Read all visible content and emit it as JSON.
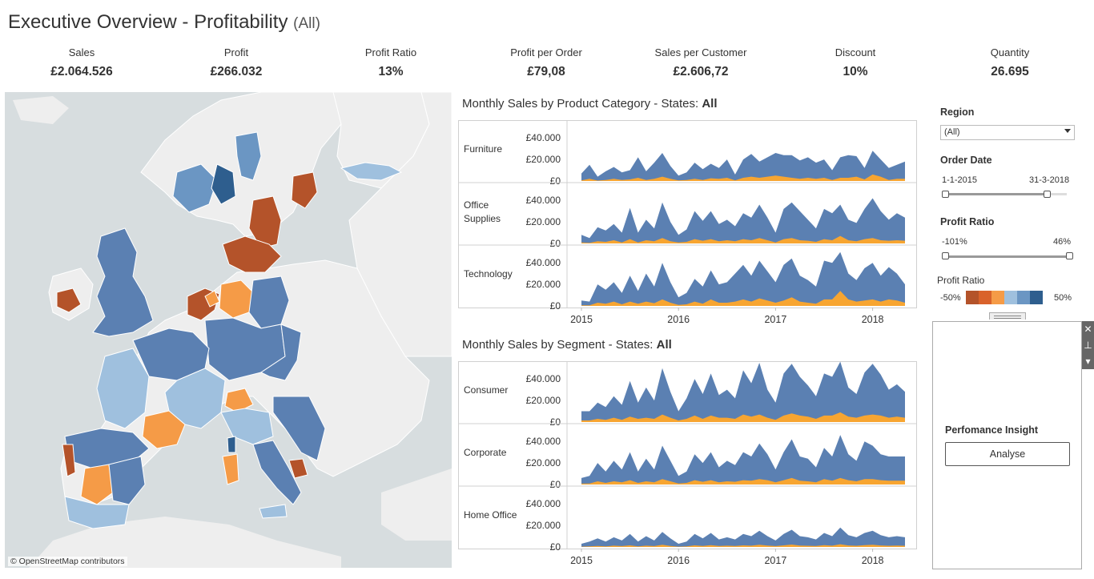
{
  "header": {
    "title": "Executive Overview - Profitability",
    "filter": "(All)"
  },
  "kpis": [
    {
      "label": "Sales",
      "value": "£2.064.526"
    },
    {
      "label": "Profit",
      "value": "£266.032"
    },
    {
      "label": "Profit Ratio",
      "value": "13%"
    },
    {
      "label": "Profit per Order",
      "value": "£79,08"
    },
    {
      "label": "Sales per Customer",
      "value": "£2.606,72"
    },
    {
      "label": "Discount",
      "value": "10%"
    },
    {
      "label": "Quantity",
      "value": "26.695"
    }
  ],
  "map": {
    "credit": "© OpenStreetMap contributors"
  },
  "colors": {
    "sales": "#5b80b2",
    "profit": "#f7a531",
    "map_sea": "#d7dddf",
    "map_land": "#eeeeee",
    "legend": [
      "#b4532a",
      "#d9622b",
      "#f59b47",
      "#9fc0de",
      "#6b96c3",
      "#2e5e8e"
    ]
  },
  "charts": {
    "category": {
      "title_prefix": "Monthly Sales by Product Category - States:",
      "title_value": "All",
      "rows": [
        "Furniture",
        "Office Supplies",
        "Technology"
      ]
    },
    "segment": {
      "title_prefix": "Monthly Sales by Segment - States:",
      "title_value": "All",
      "rows": [
        "Consumer",
        "Corporate",
        "Home Office"
      ]
    },
    "y_ticks": [
      "£40.000",
      "£20.000",
      "£0"
    ],
    "x_ticks": [
      "2015",
      "2016",
      "2017",
      "2018"
    ]
  },
  "chart_data": [
    {
      "type": "area",
      "title": "Monthly Sales by Product Category - States: All",
      "ylim": [
        0,
        52000
      ],
      "x_start": "2015-01",
      "x_end": "2018-03",
      "series_names": [
        "Sales",
        "Profit"
      ],
      "panels": [
        {
          "name": "Furniture",
          "sales": [
            7000,
            15000,
            4000,
            9000,
            13000,
            8000,
            10000,
            22000,
            9000,
            17000,
            26000,
            14000,
            5000,
            8000,
            17000,
            11000,
            16000,
            12000,
            20000,
            6000,
            20000,
            25000,
            18000,
            22000,
            26000,
            24000,
            24000,
            19000,
            22000,
            17000,
            20000,
            10000,
            22000,
            24000,
            23000,
            12000,
            28000,
            20000,
            12000,
            15000,
            18000
          ],
          "profit": [
            500,
            2000,
            400,
            1000,
            2000,
            1000,
            1500,
            3000,
            1000,
            2000,
            4000,
            2000,
            500,
            1000,
            2000,
            1000,
            2500,
            2000,
            3000,
            500,
            3000,
            4000,
            3000,
            4000,
            5000,
            4000,
            3000,
            2000,
            3000,
            2000,
            3000,
            1000,
            3000,
            3000,
            4000,
            1500,
            6000,
            4000,
            1000,
            2000,
            2000
          ]
        },
        {
          "name": "Office Supplies",
          "sales": [
            8000,
            5000,
            15000,
            12000,
            18000,
            10000,
            33000,
            10000,
            22000,
            14000,
            38000,
            20000,
            8000,
            13000,
            30000,
            21000,
            30000,
            18000,
            22000,
            16000,
            28000,
            24000,
            36000,
            24000,
            10000,
            32000,
            38000,
            30000,
            22000,
            14000,
            32000,
            28000,
            36000,
            22000,
            19000,
            32000,
            42000,
            30000,
            22000,
            28000,
            24000
          ],
          "profit": [
            1000,
            500,
            2000,
            1500,
            3000,
            1000,
            4000,
            1000,
            3000,
            2000,
            5000,
            2000,
            1000,
            1500,
            4000,
            2500,
            4000,
            2000,
            3000,
            2000,
            4000,
            3000,
            5000,
            3000,
            1000,
            4000,
            5000,
            3000,
            2500,
            1500,
            4000,
            3000,
            7000,
            3000,
            2000,
            4000,
            5000,
            3000,
            2500,
            3000,
            2500
          ]
        },
        {
          "name": "Technology",
          "sales": [
            5000,
            4000,
            20000,
            15000,
            22000,
            12000,
            28000,
            14000,
            30000,
            18000,
            40000,
            22000,
            8000,
            12000,
            25000,
            18000,
            33000,
            20000,
            22000,
            30000,
            38000,
            28000,
            42000,
            32000,
            22000,
            38000,
            44000,
            28000,
            24000,
            18000,
            42000,
            40000,
            50000,
            30000,
            24000,
            35000,
            40000,
            28000,
            36000,
            30000,
            20000
          ],
          "profit": [
            500,
            500,
            3000,
            2000,
            4000,
            1500,
            4000,
            2000,
            4000,
            2500,
            6000,
            3000,
            1000,
            1500,
            4000,
            2000,
            6000,
            3000,
            3000,
            4000,
            6000,
            4000,
            7000,
            5000,
            3000,
            5000,
            8000,
            4000,
            3000,
            2000,
            6000,
            6000,
            14000,
            6000,
            4000,
            5000,
            6000,
            4000,
            6000,
            5000,
            3000
          ]
        }
      ]
    },
    {
      "type": "area",
      "title": "Monthly Sales by Segment - States: All",
      "ylim": [
        0,
        52000
      ],
      "x_start": "2015-01",
      "x_end": "2018-03",
      "series_names": [
        "Sales",
        "Profit"
      ],
      "panels": [
        {
          "name": "Consumer",
          "sales": [
            10000,
            10000,
            18000,
            14000,
            24000,
            16000,
            38000,
            18000,
            32000,
            20000,
            50000,
            28000,
            10000,
            22000,
            40000,
            26000,
            45000,
            25000,
            30000,
            22000,
            48000,
            36000,
            55000,
            30000,
            18000,
            45000,
            54000,
            42000,
            34000,
            24000,
            45000,
            42000,
            56000,
            32000,
            26000,
            46000,
            54000,
            44000,
            30000,
            35000,
            28000
          ],
          "profit": [
            1500,
            1500,
            3000,
            2000,
            4000,
            2000,
            5000,
            3000,
            4000,
            3000,
            7000,
            4000,
            1500,
            3000,
            6000,
            3000,
            6000,
            4000,
            4000,
            3000,
            7000,
            5000,
            7000,
            4000,
            2000,
            6000,
            8000,
            6000,
            5000,
            3000,
            6000,
            6000,
            9000,
            5000,
            4000,
            6000,
            7000,
            6000,
            4000,
            5000,
            4000
          ]
        },
        {
          "name": "Corporate",
          "sales": [
            6000,
            8000,
            20000,
            12000,
            22000,
            14000,
            30000,
            12000,
            24000,
            14000,
            36000,
            22000,
            8000,
            12000,
            28000,
            20000,
            30000,
            16000,
            22000,
            18000,
            30000,
            26000,
            38000,
            28000,
            14000,
            30000,
            42000,
            26000,
            24000,
            16000,
            34000,
            26000,
            46000,
            28000,
            22000,
            40000,
            36000,
            28000,
            26000,
            26000,
            26000
          ],
          "profit": [
            800,
            1000,
            3000,
            1500,
            3000,
            2000,
            4000,
            1500,
            3000,
            2000,
            5000,
            3000,
            1000,
            1500,
            4000,
            2500,
            4000,
            2000,
            3000,
            2500,
            4000,
            3500,
            5000,
            4000,
            2000,
            4000,
            6000,
            3500,
            3000,
            2000,
            5000,
            3500,
            6000,
            4000,
            3000,
            5000,
            5000,
            4000,
            3500,
            3500,
            3500
          ]
        },
        {
          "name": "Home Office",
          "sales": [
            3000,
            5000,
            8000,
            5000,
            9000,
            6000,
            12000,
            5000,
            10000,
            6000,
            14000,
            8000,
            3000,
            5000,
            12000,
            8000,
            13000,
            7000,
            9000,
            7000,
            12000,
            10000,
            15000,
            10000,
            6000,
            12000,
            16000,
            10000,
            9000,
            7000,
            13000,
            10000,
            18000,
            11000,
            9000,
            13000,
            15000,
            11000,
            9000,
            10000,
            9000
          ],
          "profit": [
            300,
            500,
            1000,
            500,
            1200,
            800,
            1500,
            600,
            1200,
            800,
            2000,
            1000,
            300,
            600,
            1500,
            1000,
            1700,
            900,
            1200,
            900,
            1500,
            1200,
            2000,
            1300,
            800,
            1500,
            2200,
            1300,
            1100,
            900,
            1700,
            1200,
            2500,
            1400,
            1100,
            1700,
            2000,
            1400,
            1100,
            1300,
            1100
          ]
        }
      ]
    }
  ],
  "filters": {
    "region": {
      "label": "Region",
      "value": "(All)"
    },
    "order_date": {
      "label": "Order Date",
      "start": "1-1-2015",
      "end": "31-3-2018",
      "range_fraction": [
        0,
        0.84
      ]
    },
    "profit_ratio": {
      "label": "Profit Ratio",
      "min": "-101%",
      "max": "46%",
      "range_fraction": [
        0,
        1
      ]
    },
    "legend": {
      "label": "Profit Ratio",
      "min": "-50%",
      "max": "50%"
    }
  },
  "insight": {
    "title": "Perfomance Insight",
    "button": "Analyse"
  },
  "side_tools": [
    "close-icon",
    "pin-icon",
    "menu-arrow-icon"
  ]
}
